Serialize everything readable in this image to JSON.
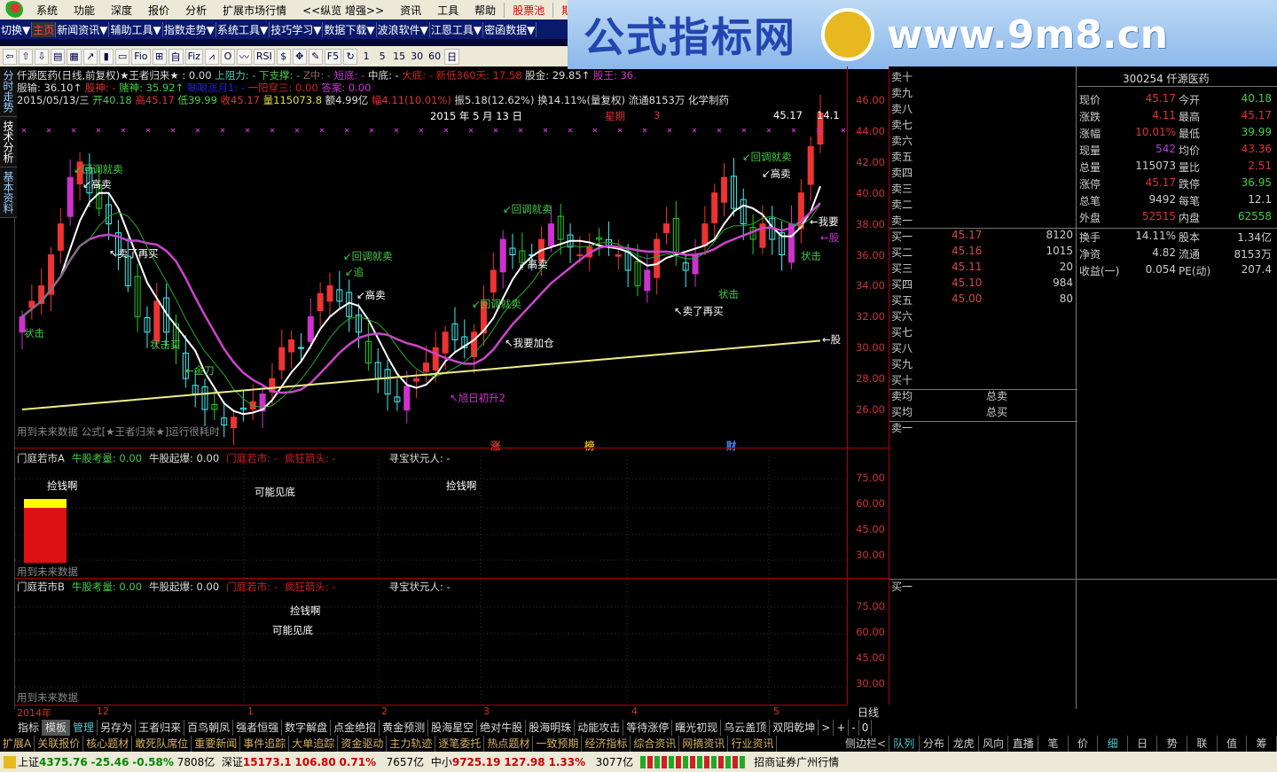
{
  "menu": [
    "系统",
    "功能",
    "深度",
    "报价",
    "分析",
    "扩展市场行情",
    "<<纵览 增强>>",
    "资讯",
    "工具",
    "帮助"
  ],
  "menu_red": [
    "股票池",
    "期权"
  ],
  "nav": [
    "切换▼",
    "主页",
    "新闻资讯▼",
    "辅助工具▼",
    "指数走势▼",
    "系统工具▼",
    "技巧学习▼",
    "数据下载▼",
    "波浪软件▼",
    "江恩工具▼",
    "密函数据▼"
  ],
  "toolbar": [
    "⇦",
    "⇧",
    "⇩",
    "▤",
    "▦",
    "↗",
    "▮",
    "▭",
    "Fio",
    "⊞",
    "自",
    "Fiz",
    "⩘",
    "O",
    "〰",
    "RSI",
    "$",
    "✥",
    "✎",
    "F5",
    "↻",
    "1",
    "5",
    "15",
    "30",
    "60",
    "日"
  ],
  "watermark": {
    "title": "公式指标网",
    "url": "www.9m8.cn"
  },
  "left_tabs": [
    "分时走势",
    "技术分析",
    "基本资料"
  ],
  "header": {
    "line1": [
      {
        "t": "仟源医药(日线,前复权)★王者归来★",
        "c": "#ddd"
      },
      {
        "t": "              : 0.00",
        "c": "#ddd"
      },
      {
        "t": "        上阻力: -",
        "c": "#4ca"
      },
      {
        "t": " 下支撑: -",
        "c": "#4c4"
      },
      {
        "t": "  Z中: -",
        "c": "#866"
      },
      {
        "t": " 短底: -",
        "c": "#c3c"
      },
      {
        "t": " 中底: -",
        "c": "#ddd"
      },
      {
        "t": " 大底: - 新低360天: 17.58",
        "c": "#c22"
      },
      {
        "t": " 股金: 29.85↑",
        "c": "#ddd"
      },
      {
        "t": " 股王: 36.",
        "c": "#c3c"
      }
    ],
    "line2": [
      {
        "t": " 服输: 36.10↑",
        "c": "#ddd"
      },
      {
        "t": " 股神: -",
        "c": "#d33"
      },
      {
        "t": " 赌神: 35.92↑",
        "c": "#4c4"
      },
      {
        "t": "          唰唰涨月1: -",
        "c": "#22c"
      },
      {
        "t": "        一阳穿三: 0.00",
        "c": "#c22"
      },
      {
        "t": " 答案: 0.00",
        "c": "#c3c"
      }
    ],
    "line3": [
      {
        "t": "2015/05/13/三",
        "c": "#ddd"
      },
      {
        "t": " 开40.18",
        "c": "#4c4"
      },
      {
        "t": " 高45.17",
        "c": "#d33"
      },
      {
        "t": " 低39.99",
        "c": "#4c4"
      },
      {
        "t": " 收45.17",
        "c": "#d33"
      },
      {
        "t": " 量115073.8",
        "c": "#dd4"
      },
      {
        "t": " 额4.99亿",
        "c": "#ddd"
      },
      {
        "t": " 幅4.11(10.01%)",
        "c": "#d33"
      },
      {
        "t": " 振5.18(12.62%) 换14.11%(量复权) 流通8153万 化学制药",
        "c": "#ddd"
      }
    ],
    "date_label": "2015 年 5 月 13 日",
    "weekday": "星期",
    "weekday_num": "3",
    "last_price": "45.17",
    "last_turnover": "14.1"
  },
  "price_axis": [
    "46.00",
    "44.00",
    "42.00",
    "40.00",
    "38.00",
    "36.00",
    "34.00",
    "32.00",
    "30.00",
    "28.00",
    "26.00"
  ],
  "chart_data": {
    "type": "candlestick",
    "closes": [
      32,
      33,
      34,
      36,
      38,
      41,
      42,
      40,
      39,
      38,
      36,
      34,
      32,
      31,
      33,
      31,
      30,
      28,
      27,
      26,
      26,
      25,
      25.5,
      26,
      26.5,
      27,
      28,
      30,
      30.5,
      30,
      32,
      33.5,
      34,
      33,
      32,
      31,
      29,
      28,
      27,
      26.5,
      27.5,
      28,
      29,
      30,
      31,
      30.5,
      30,
      31,
      33,
      35,
      37,
      36,
      35.5,
      36,
      37,
      38,
      37,
      36.5,
      36,
      36.5,
      37,
      36.5,
      36,
      35,
      34,
      35,
      37,
      38,
      36,
      35,
      36,
      38,
      40,
      41,
      39,
      38,
      37,
      38,
      37,
      36,
      38,
      40,
      43,
      45.17
    ],
    "ylim": [
      25,
      47
    ]
  },
  "signals": [
    {
      "t": "↙回调就卖",
      "c": "#4c4"
    },
    {
      "t": "↙高卖",
      "c": "#fff"
    },
    {
      "t": "↖卖了再买",
      "c": "#fff"
    },
    {
      "t": "状击",
      "c": "#4c4"
    },
    {
      "t": "状击买",
      "c": "#4c4"
    },
    {
      "t": "←金刀",
      "c": "#4c4"
    },
    {
      "t": "↙回调就卖",
      "c": "#4c4"
    },
    {
      "t": "↙追",
      "c": "#4c4"
    },
    {
      "t": "↙高卖",
      "c": "#fff"
    },
    {
      "t": "↙回调就卖",
      "c": "#4c4"
    },
    {
      "t": "↖我要加仓",
      "c": "#fff"
    },
    {
      "t": "↖旭日初升2",
      "c": "#c3c"
    },
    {
      "t": "↙回调就卖",
      "c": "#4c4"
    },
    {
      "t": "↙高卖",
      "c": "#fff"
    },
    {
      "t": "↖卖了再买",
      "c": "#fff"
    },
    {
      "t": "状击",
      "c": "#4c4"
    },
    {
      "t": "↙回调就卖",
      "c": "#4c4"
    },
    {
      "t": "↙高卖",
      "c": "#fff"
    },
    {
      "t": "←我要",
      "c": "#fff"
    },
    {
      "t": "←股",
      "c": "#c3c"
    },
    {
      "t": "←股",
      "c": "#fff"
    },
    {
      "t": "状击",
      "c": "#4c4"
    }
  ],
  "chart_footer": "用到未来数据 公式[★王者归来★]运行很耗时",
  "event_marks": [
    {
      "t": "涨",
      "c": "#c33"
    },
    {
      "t": "榜",
      "c": "#d4a000"
    },
    {
      "t": "财",
      "c": "#48f"
    }
  ],
  "sub_a": {
    "title": "门庭若市A",
    "items": [
      {
        "t": "牛股考量: 0.00",
        "c": "#4c4"
      },
      {
        "t": "牛股起爆: 0.00",
        "c": "#ddd"
      },
      {
        "t": "门庭若市: -",
        "c": "#c22"
      },
      {
        "t": "疯狂箭头: -",
        "c": "#c22"
      },
      {
        "t": "寻宝状元人: -",
        "c": "#ddd"
      }
    ],
    "labels": [
      "捡钱啊",
      "可能见底",
      "捡钱啊"
    ],
    "footer": "用到未来数据",
    "axis": [
      "75.00",
      "60.00",
      "45.00",
      "30.00"
    ]
  },
  "sub_b": {
    "title": "门庭若市B",
    "items": [
      {
        "t": "牛股考量: 0.00",
        "c": "#4c4"
      },
      {
        "t": "牛股起爆: 0.00",
        "c": "#ddd"
      },
      {
        "t": "门庭若市: -",
        "c": "#c22"
      },
      {
        "t": "疯狂箭头: -",
        "c": "#c22"
      },
      {
        "t": "寻宝状元人: -",
        "c": "#ddd"
      }
    ],
    "labels": [
      "捡钱啊",
      "可能见底"
    ],
    "footer": "用到未来数据",
    "axis": [
      "75.00",
      "60.00",
      "45.00",
      "30.00"
    ]
  },
  "order_book": {
    "sell": [
      "卖十",
      "卖九",
      "卖八",
      "卖七",
      "卖六",
      "卖五",
      "卖四",
      "卖三",
      "卖二",
      "卖一"
    ],
    "buy": [
      {
        "l": "买一",
        "p": "45.17",
        "v": "8120"
      },
      {
        "l": "买二",
        "p": "45.16",
        "v": "1015"
      },
      {
        "l": "买三",
        "p": "45.11",
        "v": "20"
      },
      {
        "l": "买四",
        "p": "45.10",
        "v": "984"
      },
      {
        "l": "买五",
        "p": "45.00",
        "v": "80"
      },
      {
        "l": "买六",
        "p": "",
        "v": ""
      },
      {
        "l": "买七",
        "p": "",
        "v": ""
      },
      {
        "l": "买八",
        "p": "",
        "v": ""
      },
      {
        "l": "买九",
        "p": "",
        "v": ""
      },
      {
        "l": "买十",
        "p": "",
        "v": ""
      }
    ],
    "sell_avg": "卖均",
    "total_sell": "总卖",
    "buy_avg": "买均",
    "total_buy": "总买",
    "sell_one": "卖一",
    "buy_one": "买一"
  },
  "quote": {
    "title": "300254 仟源医药",
    "rows": [
      [
        "现价",
        "45.17",
        "#d33",
        "今开",
        "40.18",
        "#4c4"
      ],
      [
        "涨跌",
        "4.11",
        "#d33",
        "最高",
        "45.17",
        "#d33"
      ],
      [
        "涨幅",
        "10.01%",
        "#d33",
        "最低",
        "39.99",
        "#4c4"
      ],
      [
        "现量",
        "542",
        "#a4c",
        "均价",
        "43.36",
        "#d33"
      ],
      [
        "总量",
        "115073",
        "#ccc",
        "量比",
        "2.51",
        "#d33"
      ],
      [
        "涨停",
        "45.17",
        "#d33",
        "跌停",
        "36.95",
        "#4c4"
      ],
      [
        "总笔",
        "9492",
        "#ccc",
        "每笔",
        "12.1",
        "#ccc"
      ],
      [
        "外盘",
        "52515",
        "#d33",
        "内盘",
        "62558",
        "#4c4"
      ],
      [
        "换手",
        "14.11%",
        "#ccc",
        "股本",
        "1.34亿",
        "#ccc"
      ],
      [
        "净资",
        "4.82",
        "#ccc",
        "流通",
        "8153万",
        "#ccc"
      ],
      [
        "收益(一)",
        "0.054",
        "#ccc",
        "PE(动)",
        "207.4",
        "#ccc"
      ]
    ]
  },
  "date_axis": [
    {
      "t": "2014年"
    },
    {
      "t": "12"
    },
    {
      "t": "1"
    },
    {
      "t": "2"
    },
    {
      "t": "3"
    },
    {
      "t": "4"
    },
    {
      "t": "5"
    }
  ],
  "period": "日线",
  "tabs1": [
    "指标",
    "模板",
    "管理",
    "另存为",
    "王者归来",
    "百鸟朝凤",
    "强者恒强",
    "数字解盘",
    "点金绝招",
    "黄金预测",
    "股海星空",
    "绝对牛股",
    "股海明珠",
    "动能攻击",
    "等待涨停",
    "曙光初现",
    "乌云盖顶",
    "双阳乾坤",
    ">",
    "+",
    "-",
    "0"
  ],
  "tabs2": [
    "扩展A",
    "关联报价",
    "核心题材",
    "敢死队席位",
    "重要新闻",
    "事件追踪",
    "大单追踪",
    "资金驱动",
    "主力轨迹",
    "逐笔委托",
    "热点题材",
    "一致预期",
    "经济指标",
    "综合资讯",
    "网摘资讯",
    "行业资讯"
  ],
  "side_toggle": "侧边栏<",
  "rtabs": [
    "队列",
    "分布",
    "龙虎",
    "风向",
    "直播",
    "笔",
    "价",
    "细",
    "日",
    "势",
    "联",
    "值",
    "筹"
  ],
  "status": {
    "sh": {
      "name": "上证",
      "price": "4375.76",
      "chg": "-25.46",
      "pct": "-0.58%",
      "amt": "7808亿"
    },
    "sz": {
      "name": "深证",
      "price": "15173.1",
      "chg": "106.80",
      "pct": "0.71%",
      "amt": "7657亿"
    },
    "zx": {
      "name": "中小",
      "price": "9725.19",
      "chg": "127.98",
      "pct": "1.33%",
      "amt": "3077亿"
    },
    "broker": "招商证券广州行情"
  }
}
